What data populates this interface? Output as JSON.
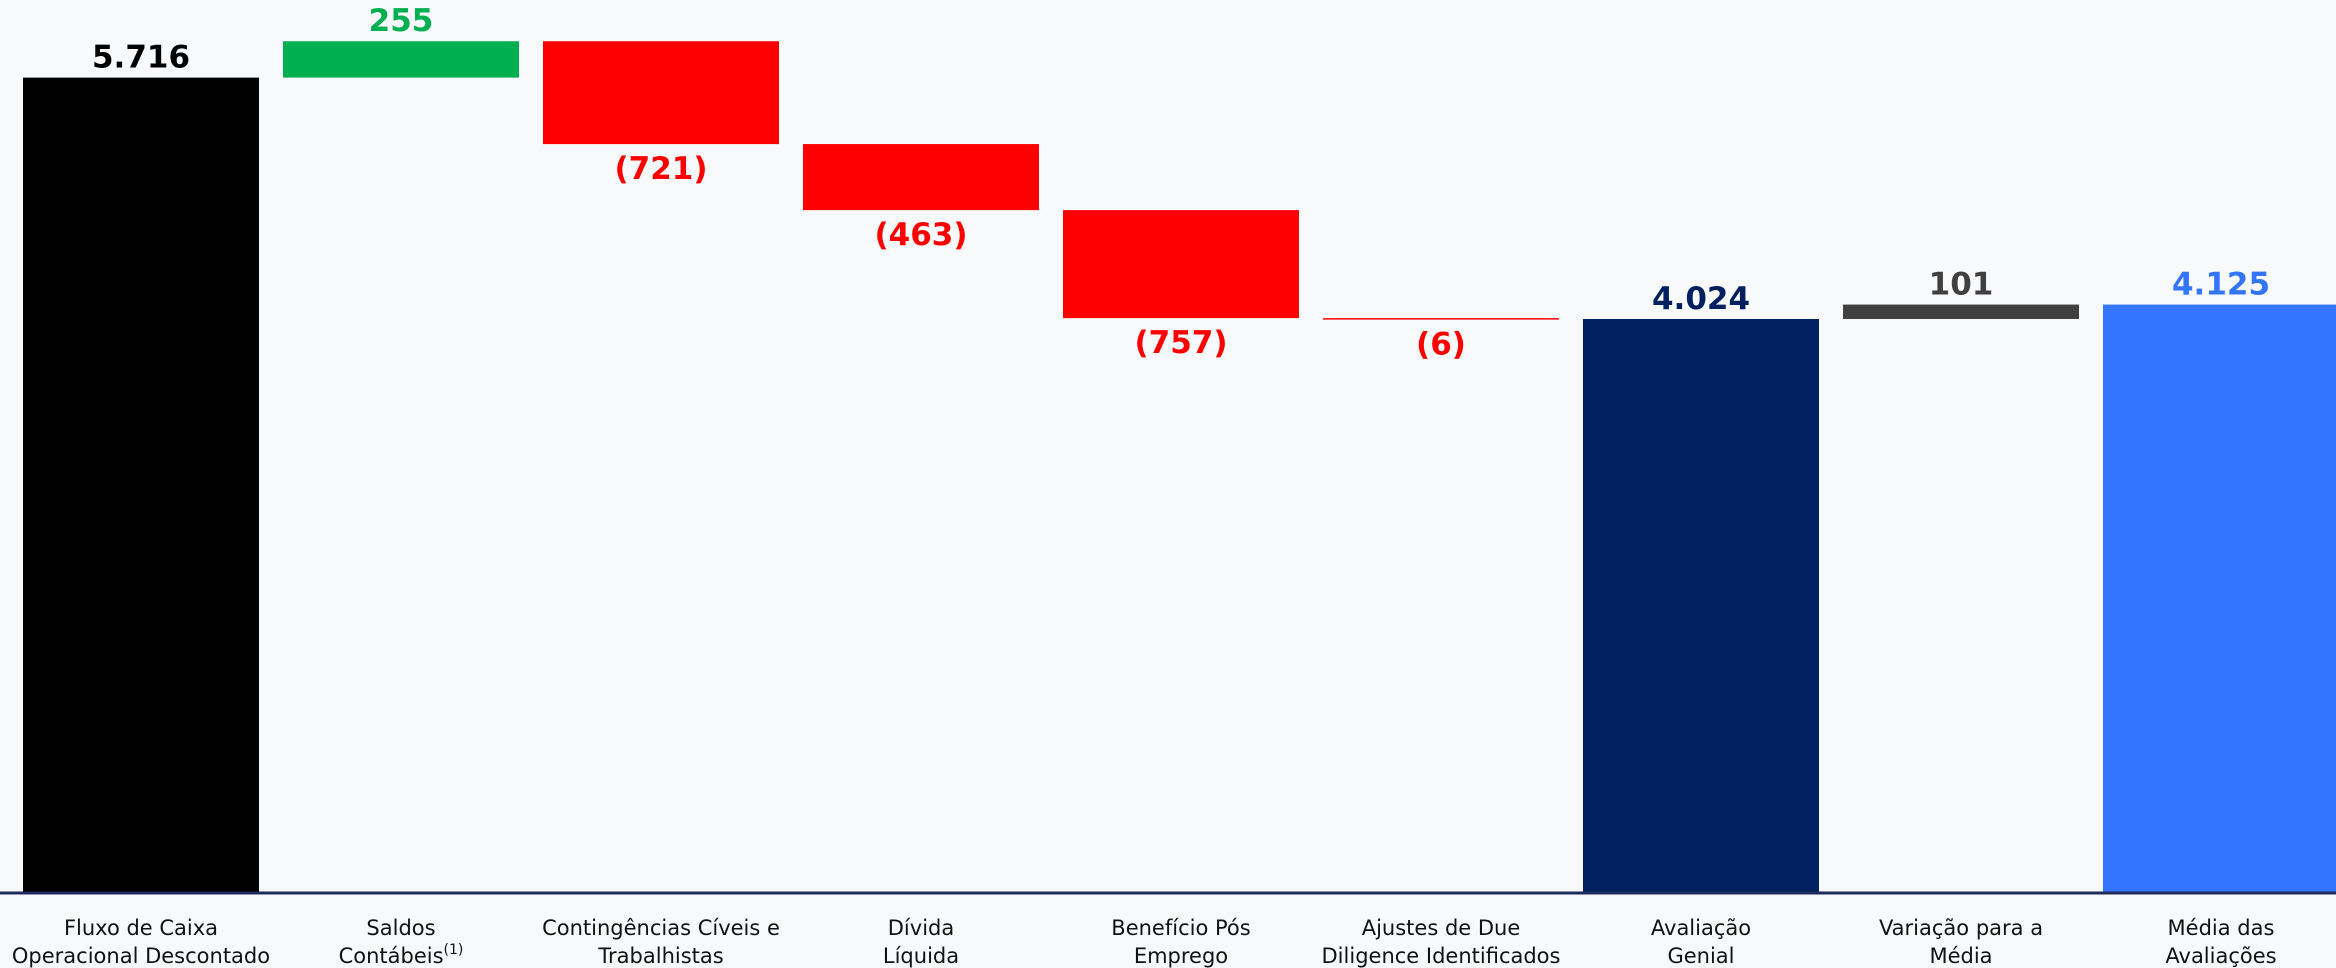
{
  "chart_data": {
    "type": "bar",
    "subtype": "waterfall",
    "title": "",
    "xlabel": "",
    "ylabel": "",
    "ylim": [
      0,
      6260
    ],
    "grid": false,
    "legend": "none",
    "categories": [
      {
        "line1": "Fluxo de Caixa",
        "line2": "Operacional Descontado",
        "sup": ""
      },
      {
        "line1": "Saldos",
        "line2": "Contábeis",
        "sup": "(1)"
      },
      {
        "line1": "Contingências Cíveis e",
        "line2": "Trabalhistas",
        "sup": ""
      },
      {
        "line1": "Dívida",
        "line2": "Líquida",
        "sup": ""
      },
      {
        "line1": "Benefício Pós",
        "line2": "Emprego",
        "sup": ""
      },
      {
        "line1": "Ajustes de Due",
        "line2": "Diligence Identificados",
        "sup": ""
      },
      {
        "line1": "Avaliação",
        "line2": "Genial",
        "sup": ""
      },
      {
        "line1": "Variação para a",
        "line2": "Média",
        "sup": ""
      },
      {
        "line1": "Média das",
        "line2": "Avaliações",
        "sup": ""
      }
    ],
    "steps": [
      {
        "kind": "total",
        "value": 5716,
        "label": "5.716",
        "color": "#000000",
        "label_color": "#000000"
      },
      {
        "kind": "delta",
        "value": 255,
        "label": "255",
        "color": "#00b050",
        "label_color": "#00b050"
      },
      {
        "kind": "delta",
        "value": -721,
        "label": "(721)",
        "color": "#ff0000",
        "label_color": "#ff0000"
      },
      {
        "kind": "delta",
        "value": -463,
        "label": "(463)",
        "color": "#ff0000",
        "label_color": "#ff0000"
      },
      {
        "kind": "delta",
        "value": -757,
        "label": "(757)",
        "color": "#ff0000",
        "label_color": "#ff0000"
      },
      {
        "kind": "delta",
        "value": -6,
        "label": "(6)",
        "color": "#ff0000",
        "label_color": "#ff0000"
      },
      {
        "kind": "total",
        "value": 4024,
        "label": "4.024",
        "color": "#002060",
        "label_color": "#002060"
      },
      {
        "kind": "delta",
        "value": 101,
        "label": "101",
        "color": "#404040",
        "label_color": "#404040"
      },
      {
        "kind": "total",
        "value": 4125,
        "label": "4.125",
        "color": "#3375ff",
        "label_color": "#3375ff"
      }
    ],
    "axis_color": "#1f2a5c"
  }
}
